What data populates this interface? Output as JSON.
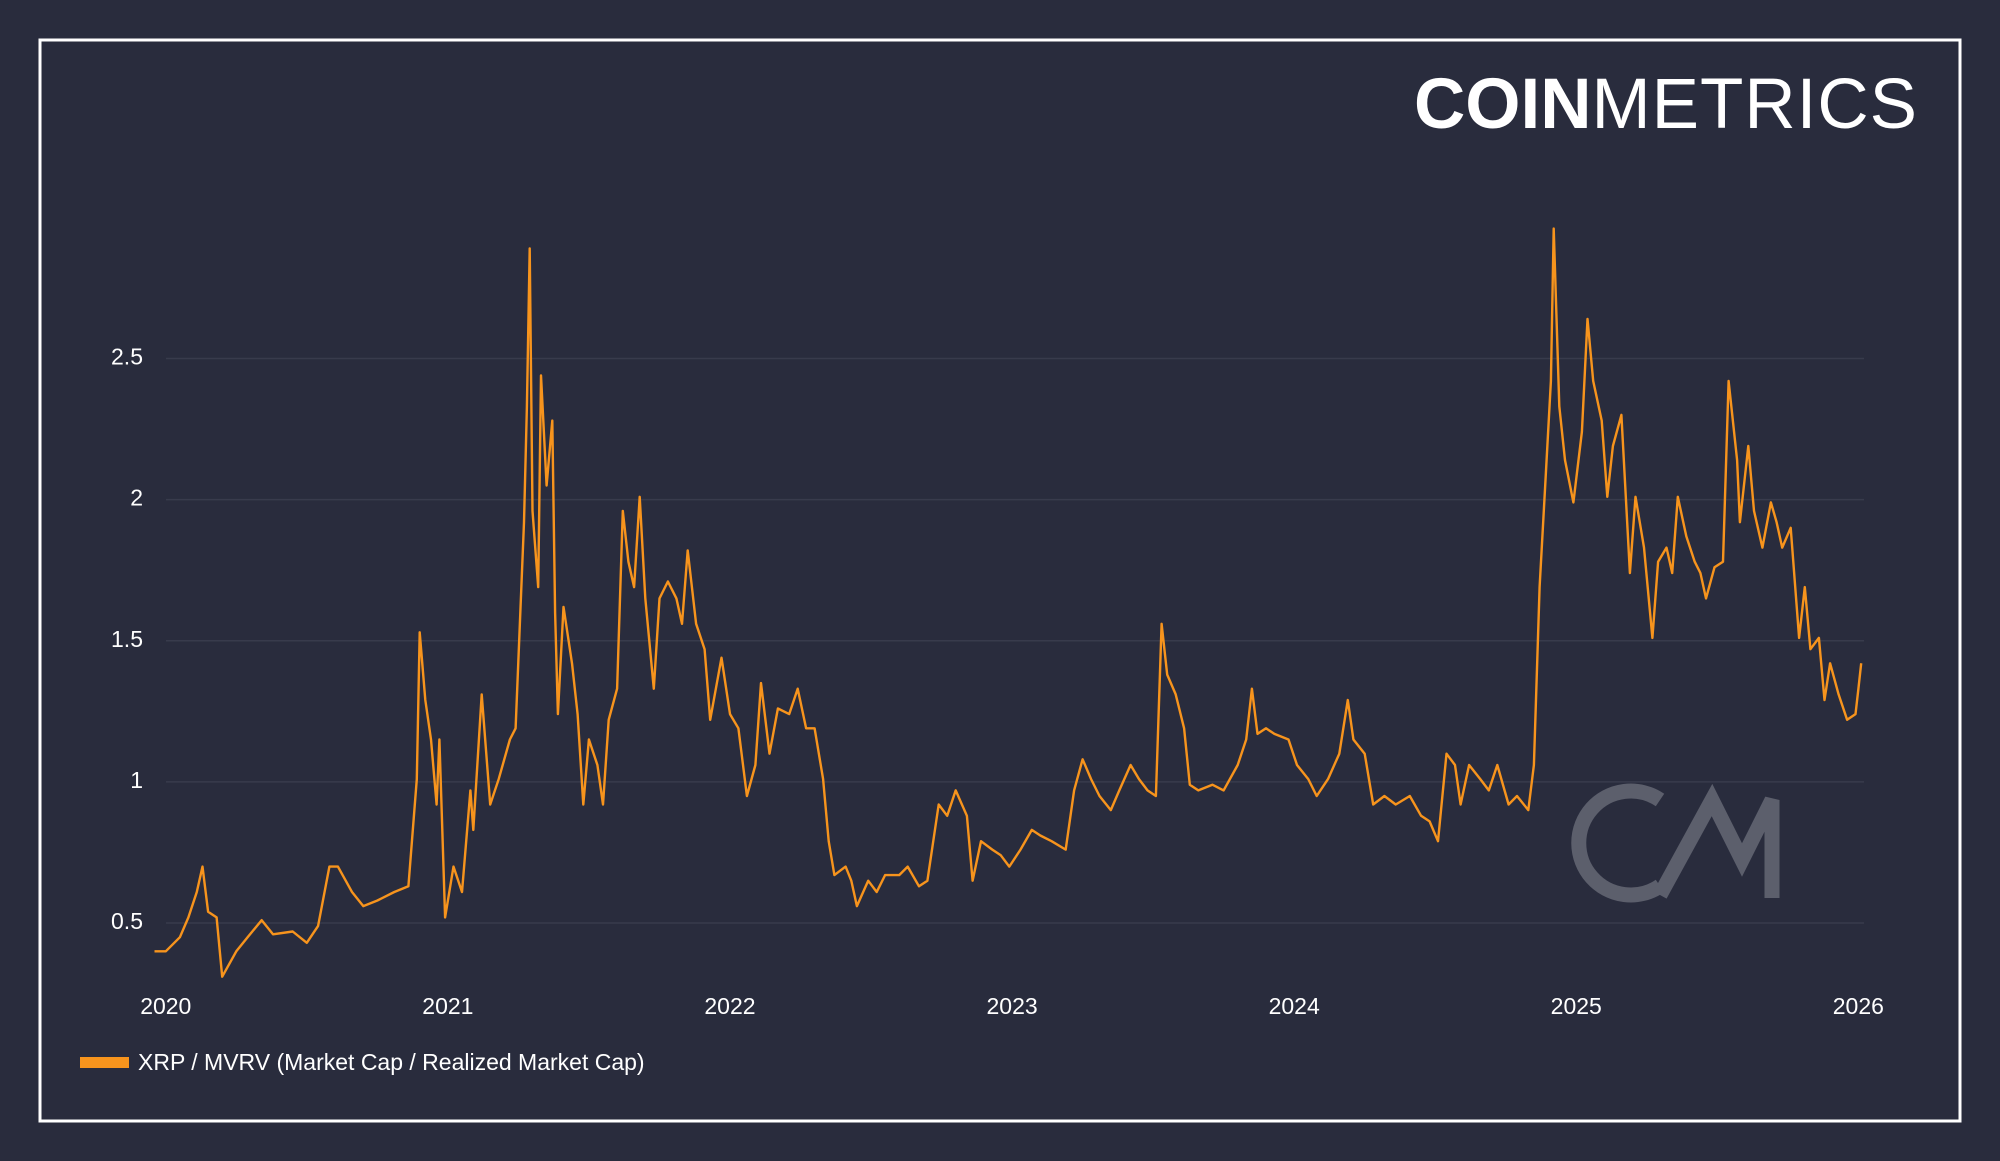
{
  "logo": {
    "strong": "COIN",
    "light": "METRICS"
  },
  "chart_data": {
    "type": "line",
    "x": [
      2019.96,
      2020.0,
      2020.05,
      2020.08,
      2020.11,
      2020.13,
      2020.15,
      2020.18,
      2020.2,
      2020.25,
      2020.29,
      2020.34,
      2020.38,
      2020.45,
      2020.5,
      2020.54,
      2020.58,
      2020.61,
      2020.66,
      2020.7,
      2020.75,
      2020.81,
      2020.86,
      2020.89,
      2020.9,
      2020.92,
      2020.94,
      2020.96,
      2020.97,
      2020.99,
      2021.02,
      2021.05,
      2021.08,
      2021.09,
      2021.12,
      2021.15,
      2021.18,
      2021.22,
      2021.24,
      2021.27,
      2021.28,
      2021.29,
      2021.3,
      2021.32,
      2021.33,
      2021.35,
      2021.37,
      2021.38,
      2021.39,
      2021.41,
      2021.44,
      2021.46,
      2021.48,
      2021.5,
      2021.53,
      2021.55,
      2021.57,
      2021.6,
      2021.62,
      2021.64,
      2021.66,
      2021.68,
      2021.7,
      2021.73,
      2021.75,
      2021.78,
      2021.81,
      2021.83,
      2021.85,
      2021.88,
      2021.91,
      2021.93,
      2021.97,
      2022.0,
      2022.03,
      2022.06,
      2022.09,
      2022.11,
      2022.14,
      2022.17,
      2022.21,
      2022.24,
      2022.27,
      2022.3,
      2022.33,
      2022.35,
      2022.37,
      2022.41,
      2022.43,
      2022.45,
      2022.49,
      2022.52,
      2022.55,
      2022.6,
      2022.63,
      2022.67,
      2022.7,
      2022.74,
      2022.77,
      2022.8,
      2022.84,
      2022.86,
      2022.89,
      2022.93,
      2022.96,
      2022.99,
      2023.03,
      2023.07,
      2023.1,
      2023.14,
      2023.19,
      2023.22,
      2023.25,
      2023.28,
      2023.31,
      2023.35,
      2023.38,
      2023.42,
      2023.45,
      2023.48,
      2023.51,
      2023.53,
      2023.55,
      2023.58,
      2023.61,
      2023.63,
      2023.66,
      2023.71,
      2023.75,
      2023.8,
      2023.83,
      2023.85,
      2023.87,
      2023.9,
      2023.93,
      2023.98,
      2024.01,
      2024.05,
      2024.08,
      2024.12,
      2024.16,
      2024.19,
      2024.21,
      2024.25,
      2024.28,
      2024.32,
      2024.36,
      2024.41,
      2024.45,
      2024.48,
      2024.51,
      2024.54,
      2024.57,
      2024.59,
      2024.62,
      2024.66,
      2024.69,
      2024.72,
      2024.76,
      2024.79,
      2024.83,
      2024.85,
      2024.87,
      2024.89,
      2024.91,
      2024.92,
      2024.94,
      2024.96,
      2024.99,
      2025.02,
      2025.04,
      2025.06,
      2025.09,
      2025.11,
      2025.13,
      2025.16,
      2025.19,
      2025.21,
      2025.24,
      2025.27,
      2025.29,
      2025.32,
      2025.34,
      2025.36,
      2025.39,
      2025.42,
      2025.44,
      2025.46,
      2025.49,
      2025.52,
      2025.54,
      2025.57,
      2025.58,
      2025.61,
      2025.63,
      2025.66,
      2025.69,
      2025.71,
      2025.73,
      2025.76,
      2025.79,
      2025.81,
      2025.83,
      2025.86,
      2025.88,
      2025.9,
      2025.93,
      2025.96,
      2025.99,
      2026.0,
      2026.01
    ],
    "series": [
      {
        "name": "XRP / MVRV (Market Cap / Realized Market Cap)",
        "color": "#f7941d",
        "values": [
          0.4,
          0.4,
          0.45,
          0.52,
          0.61,
          0.7,
          0.54,
          0.52,
          0.31,
          0.4,
          0.45,
          0.51,
          0.46,
          0.47,
          0.43,
          0.49,
          0.7,
          0.7,
          0.61,
          0.56,
          0.58,
          0.61,
          0.63,
          1.01,
          1.53,
          1.29,
          1.15,
          0.92,
          1.15,
          0.52,
          0.7,
          0.61,
          0.97,
          0.83,
          1.31,
          0.92,
          1.01,
          1.15,
          1.19,
          1.92,
          2.33,
          2.89,
          1.96,
          1.69,
          2.44,
          2.05,
          2.28,
          1.6,
          1.24,
          1.62,
          1.42,
          1.24,
          0.92,
          1.15,
          1.06,
          0.92,
          1.22,
          1.33,
          1.96,
          1.78,
          1.69,
          2.01,
          1.65,
          1.33,
          1.65,
          1.71,
          1.65,
          1.56,
          1.82,
          1.56,
          1.47,
          1.22,
          1.44,
          1.24,
          1.19,
          0.95,
          1.06,
          1.35,
          1.1,
          1.26,
          1.24,
          1.33,
          1.19,
          1.19,
          1.01,
          0.79,
          0.67,
          0.7,
          0.65,
          0.56,
          0.65,
          0.61,
          0.67,
          0.67,
          0.7,
          0.63,
          0.65,
          0.92,
          0.88,
          0.97,
          0.88,
          0.65,
          0.79,
          0.76,
          0.74,
          0.7,
          0.76,
          0.83,
          0.81,
          0.79,
          0.76,
          0.97,
          1.08,
          1.01,
          0.95,
          0.9,
          0.97,
          1.06,
          1.01,
          0.97,
          0.95,
          1.56,
          1.38,
          1.31,
          1.19,
          0.99,
          0.97,
          0.99,
          0.97,
          1.06,
          1.15,
          1.33,
          1.17,
          1.19,
          1.17,
          1.15,
          1.06,
          1.01,
          0.95,
          1.01,
          1.1,
          1.29,
          1.15,
          1.1,
          0.92,
          0.95,
          0.92,
          0.95,
          0.88,
          0.86,
          0.79,
          1.1,
          1.06,
          0.92,
          1.06,
          1.01,
          0.97,
          1.06,
          0.92,
          0.95,
          0.9,
          1.06,
          1.69,
          2.05,
          2.42,
          2.96,
          2.33,
          2.14,
          1.99,
          2.24,
          2.64,
          2.42,
          2.28,
          2.01,
          2.19,
          2.3,
          1.74,
          2.01,
          1.83,
          1.51,
          1.78,
          1.83,
          1.74,
          2.01,
          1.87,
          1.78,
          1.74,
          1.65,
          1.76,
          1.78,
          2.42,
          2.14,
          1.92,
          2.19,
          1.96,
          1.83,
          1.99,
          1.92,
          1.83,
          1.9,
          1.51,
          1.69,
          1.47,
          1.51,
          1.29,
          1.42,
          1.31,
          1.22,
          1.24,
          1.33,
          1.42
        ]
      }
    ],
    "xlim": [
      2019.96,
      2026.02
    ],
    "xticks": [
      2020,
      2021,
      2022,
      2023,
      2024,
      2025,
      2026
    ],
    "ylim": [
      0.3,
      3.0
    ],
    "yticks": [
      0.5,
      1,
      1.5,
      2,
      2.5
    ],
    "grid": true
  }
}
